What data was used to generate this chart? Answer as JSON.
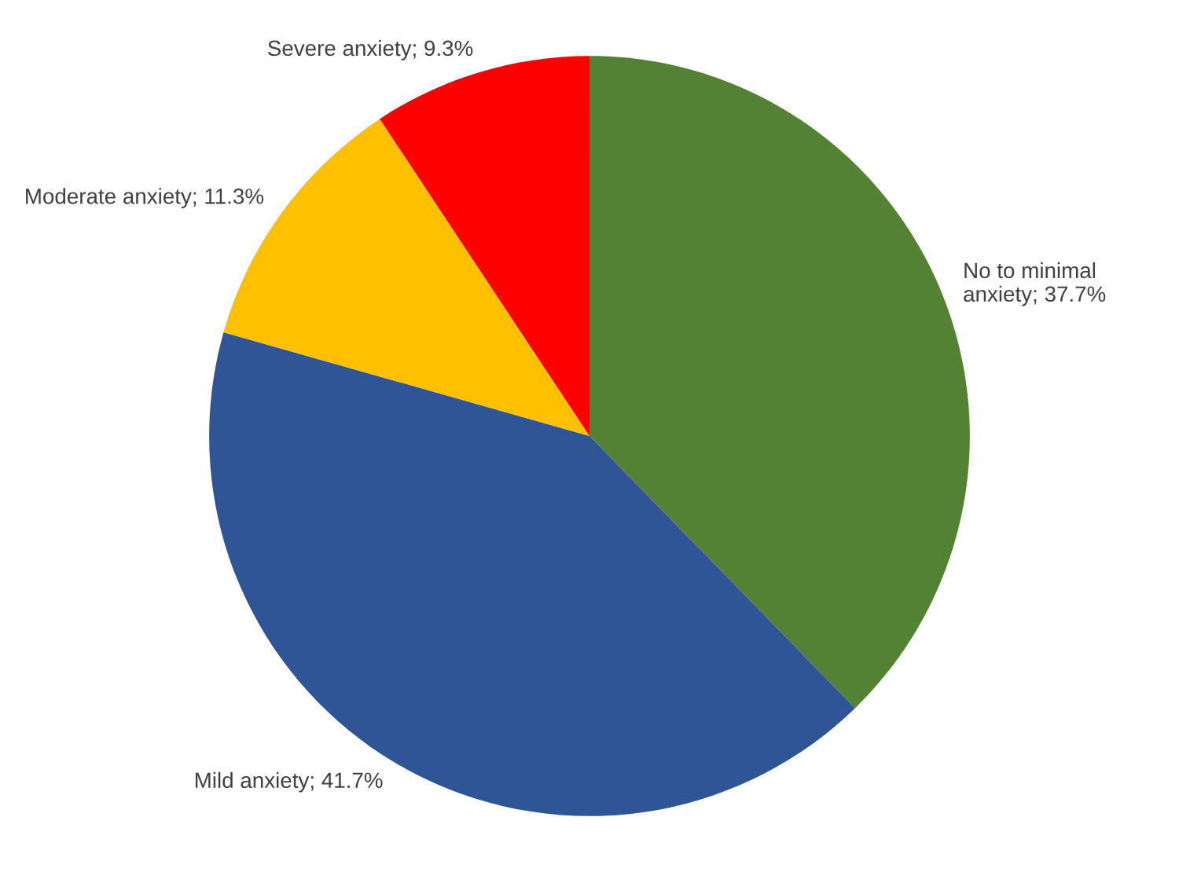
{
  "chart_data": {
    "type": "pie",
    "categories": [
      "No to minimal anxiety",
      "Mild anxiety",
      "Moderate anxiety",
      "Severe anxiety"
    ],
    "values": [
      37.7,
      41.7,
      11.3,
      9.3
    ],
    "value_labels": [
      "37.7%",
      "41.7%",
      "11.3%",
      "9.3%"
    ],
    "colors": [
      "#548235",
      "#2f5597",
      "#ffc000",
      "#ff0000"
    ],
    "legend": false
  }
}
